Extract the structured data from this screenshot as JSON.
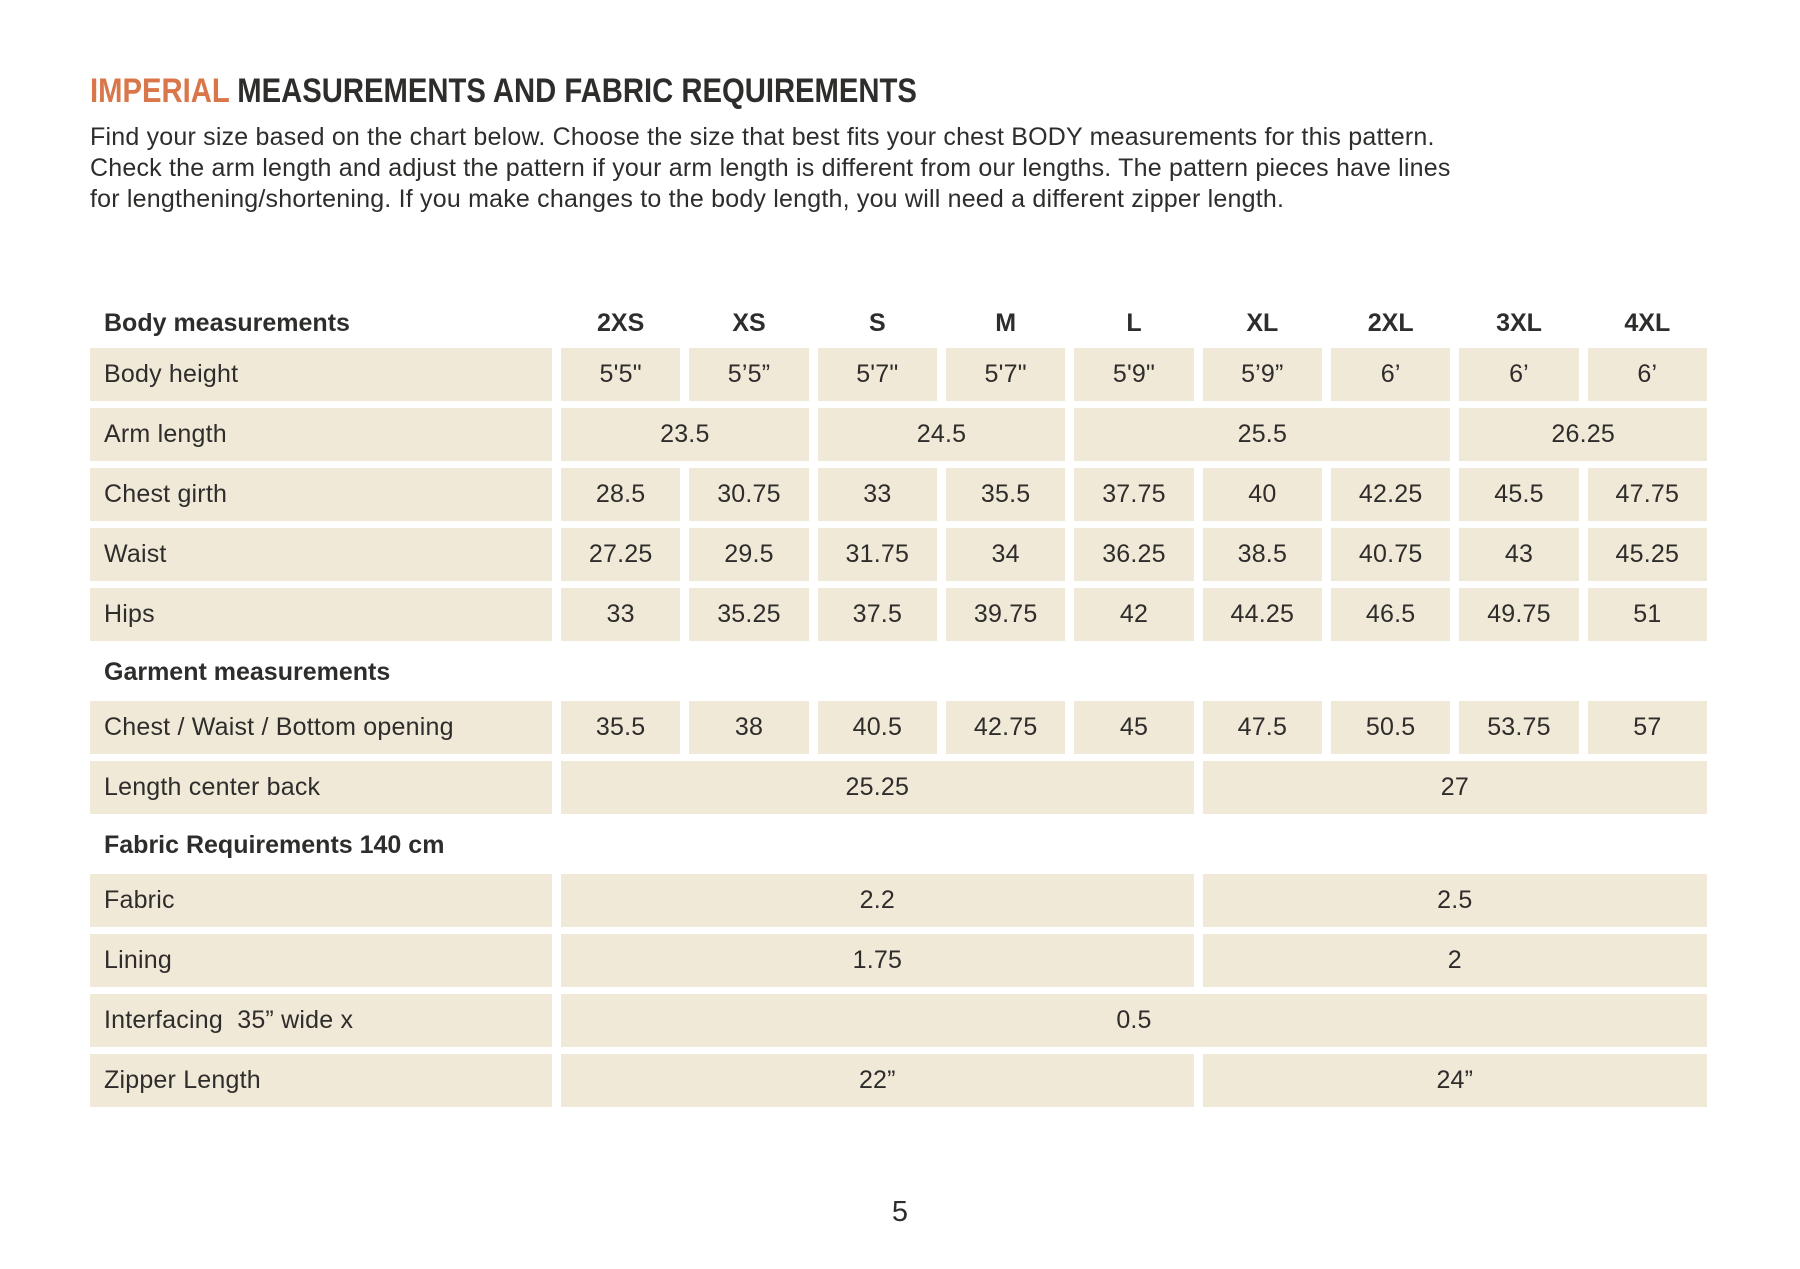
{
  "title": {
    "highlight": "IMPERIAL",
    "rest": " MEASUREMENTS AND FABRIC REQUIREMENTS"
  },
  "intro_lines": [
    "Find your size based on the chart below. Choose the size that best fits your chest BODY measurements for this pattern.",
    "Check the arm length and adjust the pattern if your arm length is different from our lengths. The pattern pieces have lines",
    "for lengthening/shortening. If you make changes to the body length, you will need a different zipper length."
  ],
  "page_number": "5",
  "colors": {
    "accent": "#d9764a",
    "cell_background": "#f1e9d8",
    "text": "#2e2d2b"
  },
  "table": {
    "header": {
      "label": "Body measurements",
      "sizes": [
        "2XS",
        "XS",
        "S",
        "M",
        "L",
        "XL",
        "2XL",
        "3XL",
        "4XL"
      ]
    },
    "rows": [
      {
        "type": "data",
        "label": "Body height",
        "cells": [
          {
            "v": "5'5\"",
            "s": 1
          },
          {
            "v": "5’5”",
            "s": 1
          },
          {
            "v": "5'7\"",
            "s": 1
          },
          {
            "v": "5'7\"",
            "s": 1
          },
          {
            "v": "5'9\"",
            "s": 1
          },
          {
            "v": "5’9”",
            "s": 1
          },
          {
            "v": "6’",
            "s": 1
          },
          {
            "v": "6’",
            "s": 1
          },
          {
            "v": "6’",
            "s": 1
          }
        ]
      },
      {
        "type": "data",
        "label": "Arm length",
        "cells": [
          {
            "v": "23.5",
            "s": 2
          },
          {
            "v": "24.5",
            "s": 2
          },
          {
            "v": "25.5",
            "s": 3
          },
          {
            "v": "26.25",
            "s": 2
          }
        ]
      },
      {
        "type": "data",
        "label": "Chest girth",
        "cells": [
          {
            "v": "28.5",
            "s": 1
          },
          {
            "v": "30.75",
            "s": 1
          },
          {
            "v": "33",
            "s": 1
          },
          {
            "v": "35.5",
            "s": 1
          },
          {
            "v": "37.75",
            "s": 1
          },
          {
            "v": "40",
            "s": 1
          },
          {
            "v": "42.25",
            "s": 1
          },
          {
            "v": "45.5",
            "s": 1
          },
          {
            "v": "47.75",
            "s": 1
          }
        ]
      },
      {
        "type": "data",
        "label": "Waist",
        "cells": [
          {
            "v": "27.25",
            "s": 1
          },
          {
            "v": "29.5",
            "s": 1
          },
          {
            "v": "31.75",
            "s": 1
          },
          {
            "v": "34",
            "s": 1
          },
          {
            "v": "36.25",
            "s": 1
          },
          {
            "v": "38.5",
            "s": 1
          },
          {
            "v": "40.75",
            "s": 1
          },
          {
            "v": "43",
            "s": 1
          },
          {
            "v": "45.25",
            "s": 1
          }
        ]
      },
      {
        "type": "data",
        "label": "Hips",
        "cells": [
          {
            "v": "33",
            "s": 1
          },
          {
            "v": "35.25",
            "s": 1
          },
          {
            "v": "37.5",
            "s": 1
          },
          {
            "v": "39.75",
            "s": 1
          },
          {
            "v": "42",
            "s": 1
          },
          {
            "v": "44.25",
            "s": 1
          },
          {
            "v": "46.5",
            "s": 1
          },
          {
            "v": "49.75",
            "s": 1
          },
          {
            "v": "51",
            "s": 1
          }
        ]
      },
      {
        "type": "section",
        "label": "Garment measurements"
      },
      {
        "type": "data",
        "label": "Chest / Waist / Bottom opening",
        "cells": [
          {
            "v": "35.5",
            "s": 1
          },
          {
            "v": "38",
            "s": 1
          },
          {
            "v": "40.5",
            "s": 1
          },
          {
            "v": "42.75",
            "s": 1
          },
          {
            "v": "45",
            "s": 1
          },
          {
            "v": "47.5",
            "s": 1
          },
          {
            "v": "50.5",
            "s": 1
          },
          {
            "v": "53.75",
            "s": 1
          },
          {
            "v": "57",
            "s": 1
          }
        ]
      },
      {
        "type": "data",
        "label": "Length center back",
        "cells": [
          {
            "v": "25.25",
            "s": 5
          },
          {
            "v": "27",
            "s": 4
          }
        ]
      },
      {
        "type": "section",
        "label": "Fabric Requirements 140 cm"
      },
      {
        "type": "data",
        "label": "Fabric",
        "cells": [
          {
            "v": "2.2",
            "s": 5
          },
          {
            "v": "2.5",
            "s": 4
          }
        ]
      },
      {
        "type": "data",
        "label": "Lining",
        "cells": [
          {
            "v": "1.75",
            "s": 5
          },
          {
            "v": "2",
            "s": 4
          }
        ]
      },
      {
        "type": "data",
        "label": "Interfacing  35” wide x",
        "cells": [
          {
            "v": "0.5",
            "s": 9
          }
        ]
      },
      {
        "type": "data",
        "label": "Zipper Length",
        "cells": [
          {
            "v": "22”",
            "s": 5
          },
          {
            "v": "24”",
            "s": 4
          }
        ]
      }
    ]
  }
}
